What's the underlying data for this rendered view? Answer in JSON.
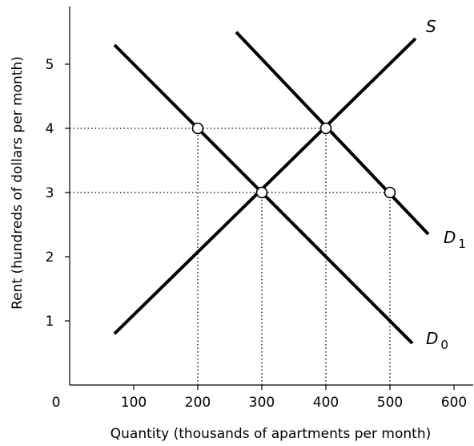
{
  "chart_data": {
    "type": "line",
    "title": "",
    "xlabel": "Quantity (thousands of apartments per month)",
    "ylabel": "Rent (hundreds of dollars per month)",
    "xlim": [
      0,
      630
    ],
    "ylim": [
      0,
      5.9
    ],
    "x_ticks": [
      0,
      100,
      200,
      300,
      400,
      500,
      600
    ],
    "y_ticks": [
      1,
      2,
      3,
      4,
      5
    ],
    "grid": false,
    "series": [
      {
        "name": "S",
        "label_main": "S",
        "label_sub": "",
        "points": [
          [
            70,
            0.8
          ],
          [
            540,
            5.4
          ]
        ]
      },
      {
        "name": "D1",
        "label_main": "D",
        "label_sub": "1",
        "points": [
          [
            260,
            5.5
          ],
          [
            560,
            2.35
          ]
        ]
      },
      {
        "name": "D0",
        "label_main": "D",
        "label_sub": "0",
        "points": [
          [
            70,
            5.3
          ],
          [
            535,
            0.65
          ]
        ]
      }
    ],
    "points": [
      {
        "x": 200,
        "y": 4
      },
      {
        "x": 400,
        "y": 4
      },
      {
        "x": 300,
        "y": 3
      },
      {
        "x": 500,
        "y": 3
      }
    ],
    "guides": [
      {
        "from": [
          0,
          4
        ],
        "to": [
          400,
          4
        ]
      },
      {
        "from": [
          0,
          3
        ],
        "to": [
          500,
          3
        ]
      },
      {
        "from": [
          200,
          0
        ],
        "to": [
          200,
          4
        ]
      },
      {
        "from": [
          300,
          0
        ],
        "to": [
          300,
          3
        ]
      },
      {
        "from": [
          400,
          0
        ],
        "to": [
          400,
          4
        ]
      },
      {
        "from": [
          500,
          0
        ],
        "to": [
          500,
          3
        ]
      }
    ],
    "colors": {
      "line": "#000000",
      "marker_fill": "#ffffff",
      "background": "#ffffff"
    }
  }
}
